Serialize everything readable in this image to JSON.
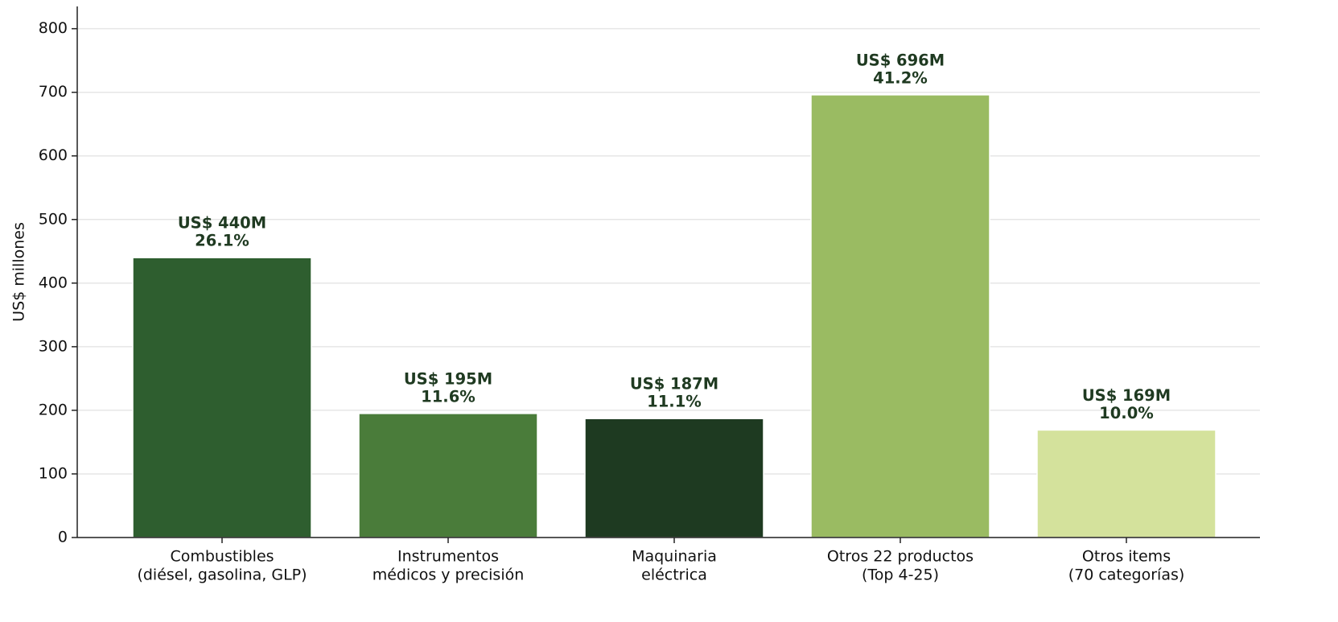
{
  "chart_data": {
    "type": "bar",
    "y_label": "US$ millones",
    "categories": [
      [
        "Combustibles",
        "(diésel, gasolina, GLP)"
      ],
      [
        "Instrumentos",
        "médicos y precisión"
      ],
      [
        "Maquinaria",
        "eléctrica"
      ],
      [
        "Otros 22 productos",
        "(Top 4-25)"
      ],
      [
        "Otros items",
        "(70 categorías)"
      ]
    ],
    "values": [
      440,
      195,
      187,
      696,
      169
    ],
    "value_labels": [
      "US$ 440M",
      "US$ 195M",
      "US$ 187M",
      "US$ 696M",
      "US$ 169M"
    ],
    "shares": [
      26.1,
      11.6,
      11.1,
      41.2,
      10.0
    ],
    "share_labels": [
      "26.1%",
      "11.6%",
      "11.1%",
      "41.2%",
      "10.0%"
    ],
    "colors": [
      "#2e5e2f",
      "#4a7c3a",
      "#1e3a21",
      "#9abb62",
      "#d4e29c"
    ],
    "ylim": [
      0,
      835
    ],
    "yticks": [
      0,
      100,
      200,
      300,
      400,
      500,
      600,
      700,
      800
    ],
    "grid": true
  }
}
